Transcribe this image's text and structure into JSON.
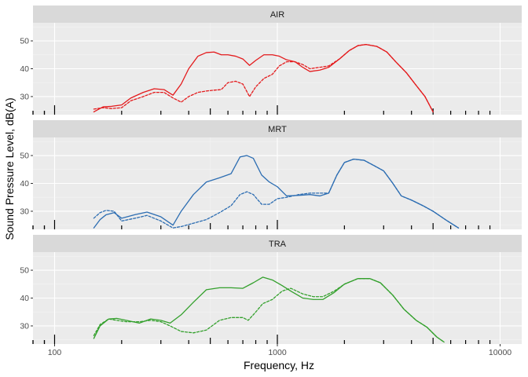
{
  "chart_data": {
    "type": "line",
    "xlabel": "Frequency, Hz",
    "ylabel": "Sound Pressure Level, dB(A)",
    "x_scale": "log10",
    "xlim": [
      80,
      12500
    ],
    "ylim": [
      23.5,
      56.5
    ],
    "x_ticks": [
      100,
      1000,
      10000
    ],
    "x_tick_labels": [
      "100",
      "1000",
      "10000"
    ],
    "y_ticks": [
      30,
      40,
      50
    ],
    "y_tick_labels": [
      "30",
      "40",
      "50"
    ],
    "grid": true,
    "legend": "none",
    "line_styles": {
      "solid": "solid",
      "dotted": "dashed"
    },
    "panels": [
      {
        "label": "AIR",
        "color": "#e41a1c",
        "solid": [
          [
            150,
            24.5
          ],
          [
            165,
            26.3
          ],
          [
            180,
            26.5
          ],
          [
            200,
            27
          ],
          [
            220,
            29.5
          ],
          [
            250,
            31.5
          ],
          [
            280,
            32.8
          ],
          [
            310,
            32.5
          ],
          [
            340,
            30.5
          ],
          [
            370,
            34.5
          ],
          [
            400,
            40
          ],
          [
            440,
            44.5
          ],
          [
            480,
            45.8
          ],
          [
            520,
            46
          ],
          [
            560,
            45
          ],
          [
            600,
            45
          ],
          [
            650,
            44.5
          ],
          [
            700,
            43.5
          ],
          [
            750,
            41.2
          ],
          [
            800,
            43
          ],
          [
            870,
            45
          ],
          [
            950,
            45
          ],
          [
            1020,
            44.5
          ],
          [
            1100,
            43.2
          ],
          [
            1200,
            42.5
          ],
          [
            1300,
            40.5
          ],
          [
            1400,
            39
          ],
          [
            1550,
            39.5
          ],
          [
            1700,
            40.5
          ],
          [
            1900,
            43.5
          ],
          [
            2100,
            46.5
          ],
          [
            2300,
            48.3
          ],
          [
            2500,
            48.7
          ],
          [
            2800,
            48
          ],
          [
            3100,
            46
          ],
          [
            3400,
            42.5
          ],
          [
            3800,
            38.5
          ],
          [
            4200,
            34
          ],
          [
            4600,
            30
          ],
          [
            5000,
            24.5
          ]
        ],
        "dotted": [
          [
            150,
            25.5
          ],
          [
            165,
            26
          ],
          [
            180,
            25.7
          ],
          [
            200,
            26
          ],
          [
            220,
            28.5
          ],
          [
            250,
            30
          ],
          [
            280,
            31.5
          ],
          [
            310,
            31.5
          ],
          [
            340,
            29.5
          ],
          [
            370,
            28
          ],
          [
            400,
            30
          ],
          [
            440,
            31.5
          ],
          [
            480,
            32
          ],
          [
            520,
            32.3
          ],
          [
            560,
            32.5
          ],
          [
            600,
            35
          ],
          [
            650,
            35.5
          ],
          [
            700,
            34.5
          ],
          [
            750,
            30
          ],
          [
            800,
            33.5
          ],
          [
            870,
            36.5
          ],
          [
            950,
            38
          ],
          [
            1020,
            41
          ],
          [
            1100,
            42.5
          ],
          [
            1200,
            42.5
          ],
          [
            1300,
            41.5
          ],
          [
            1400,
            40
          ],
          [
            1550,
            40.5
          ],
          [
            1700,
            41
          ],
          [
            1900,
            43.5
          ],
          [
            2100,
            46.5
          ],
          [
            2300,
            48.3
          ],
          [
            2500,
            48.7
          ],
          [
            2800,
            48
          ],
          [
            3100,
            46
          ],
          [
            3400,
            42.5
          ],
          [
            3800,
            38.5
          ],
          [
            4200,
            34
          ],
          [
            4600,
            30
          ],
          [
            5000,
            24.5
          ]
        ]
      },
      {
        "label": "MRT",
        "color": "#2c6db2",
        "solid": [
          [
            150,
            24
          ],
          [
            160,
            27
          ],
          [
            170,
            28.7
          ],
          [
            185,
            29.5
          ],
          [
            200,
            27.5
          ],
          [
            230,
            28.8
          ],
          [
            260,
            29.7
          ],
          [
            300,
            28
          ],
          [
            340,
            25
          ],
          [
            370,
            30
          ],
          [
            420,
            36
          ],
          [
            480,
            40.5
          ],
          [
            550,
            42
          ],
          [
            620,
            43.5
          ],
          [
            680,
            49.5
          ],
          [
            730,
            50
          ],
          [
            780,
            49
          ],
          [
            850,
            43
          ],
          [
            920,
            40.5
          ],
          [
            1000,
            38.8
          ],
          [
            1100,
            35.5
          ],
          [
            1250,
            35.7
          ],
          [
            1400,
            36
          ],
          [
            1550,
            35.5
          ],
          [
            1700,
            36.5
          ],
          [
            1850,
            43
          ],
          [
            2000,
            47.5
          ],
          [
            2200,
            48.7
          ],
          [
            2450,
            48.3
          ],
          [
            2700,
            46.5
          ],
          [
            3000,
            44.5
          ],
          [
            3300,
            40
          ],
          [
            3600,
            35.5
          ],
          [
            4000,
            34
          ],
          [
            4500,
            32
          ],
          [
            5000,
            30
          ],
          [
            5800,
            26.5
          ],
          [
            6500,
            24
          ]
        ],
        "dotted": [
          [
            150,
            27.5
          ],
          [
            160,
            29.5
          ],
          [
            170,
            30.3
          ],
          [
            185,
            30
          ],
          [
            200,
            26.5
          ],
          [
            230,
            27.5
          ],
          [
            260,
            28.5
          ],
          [
            300,
            26.5
          ],
          [
            340,
            24
          ],
          [
            370,
            24.5
          ],
          [
            420,
            25.7
          ],
          [
            480,
            27
          ],
          [
            550,
            29.5
          ],
          [
            620,
            32
          ],
          [
            680,
            36
          ],
          [
            730,
            37
          ],
          [
            780,
            36
          ],
          [
            850,
            32.5
          ],
          [
            920,
            32.5
          ],
          [
            1000,
            34.5
          ],
          [
            1100,
            35
          ],
          [
            1250,
            36
          ],
          [
            1400,
            36.5
          ],
          [
            1550,
            36.5
          ],
          [
            1700,
            36.5
          ],
          [
            1850,
            43
          ],
          [
            2000,
            47.5
          ],
          [
            2200,
            48.7
          ],
          [
            2450,
            48.3
          ],
          [
            2700,
            46.5
          ],
          [
            3000,
            44.5
          ],
          [
            3300,
            40
          ],
          [
            3600,
            35.5
          ],
          [
            4000,
            34
          ],
          [
            4500,
            32
          ],
          [
            5000,
            30
          ],
          [
            5800,
            26.5
          ],
          [
            6500,
            24
          ]
        ]
      },
      {
        "label": "TRA",
        "color": "#33a02c",
        "solid": [
          [
            150,
            25.5
          ],
          [
            160,
            30
          ],
          [
            175,
            32.5
          ],
          [
            190,
            32.7
          ],
          [
            210,
            32
          ],
          [
            240,
            31
          ],
          [
            270,
            32.5
          ],
          [
            300,
            32
          ],
          [
            330,
            31
          ],
          [
            370,
            34
          ],
          [
            420,
            38.5
          ],
          [
            480,
            43
          ],
          [
            550,
            43.7
          ],
          [
            620,
            43.7
          ],
          [
            700,
            43.5
          ],
          [
            780,
            45.5
          ],
          [
            860,
            47.5
          ],
          [
            950,
            46.5
          ],
          [
            1050,
            44.5
          ],
          [
            1150,
            42.5
          ],
          [
            1300,
            40
          ],
          [
            1450,
            39.5
          ],
          [
            1600,
            39.5
          ],
          [
            1800,
            42
          ],
          [
            2000,
            45
          ],
          [
            2300,
            47
          ],
          [
            2600,
            47
          ],
          [
            2900,
            45.5
          ],
          [
            3300,
            41
          ],
          [
            3700,
            36
          ],
          [
            4200,
            32
          ],
          [
            4700,
            29.5
          ],
          [
            5200,
            26
          ],
          [
            5600,
            24.2
          ]
        ],
        "dotted": [
          [
            150,
            26.5
          ],
          [
            160,
            30.5
          ],
          [
            175,
            32.5
          ],
          [
            190,
            32
          ],
          [
            210,
            31.5
          ],
          [
            240,
            31.5
          ],
          [
            270,
            32
          ],
          [
            300,
            31.5
          ],
          [
            330,
            30
          ],
          [
            370,
            28
          ],
          [
            420,
            27.5
          ],
          [
            480,
            28.5
          ],
          [
            550,
            32
          ],
          [
            620,
            33
          ],
          [
            700,
            33
          ],
          [
            740,
            32
          ],
          [
            800,
            35
          ],
          [
            860,
            38
          ],
          [
            950,
            39.5
          ],
          [
            1050,
            42.5
          ],
          [
            1150,
            43.5
          ],
          [
            1300,
            41.5
          ],
          [
            1450,
            40.5
          ],
          [
            1600,
            40.5
          ],
          [
            1800,
            42.5
          ],
          [
            2000,
            45
          ],
          [
            2300,
            47
          ],
          [
            2600,
            47
          ],
          [
            2900,
            45.5
          ],
          [
            3300,
            41
          ],
          [
            3700,
            36
          ],
          [
            4200,
            32
          ],
          [
            4700,
            29.5
          ],
          [
            5200,
            26
          ],
          [
            5600,
            24.2
          ]
        ]
      }
    ]
  }
}
